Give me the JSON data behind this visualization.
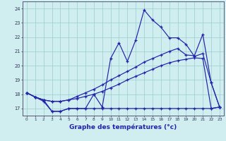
{
  "xlabel": "Graphe des températures (°c)",
  "hours": [
    0,
    1,
    2,
    3,
    4,
    5,
    6,
    7,
    8,
    9,
    10,
    11,
    12,
    13,
    14,
    15,
    16,
    17,
    18,
    19,
    20,
    21,
    22,
    23
  ],
  "line1": [
    18.1,
    17.8,
    17.5,
    16.8,
    16.8,
    17.0,
    17.0,
    17.0,
    17.0,
    17.0,
    17.0,
    17.0,
    17.0,
    17.0,
    17.0,
    17.0,
    17.0,
    17.0,
    17.0,
    17.0,
    17.0,
    17.0,
    17.0,
    17.1
  ],
  "line2": [
    18.1,
    17.8,
    17.6,
    17.5,
    17.5,
    17.6,
    17.7,
    17.85,
    18.0,
    18.2,
    18.45,
    18.7,
    19.0,
    19.25,
    19.5,
    19.75,
    20.0,
    20.2,
    20.35,
    20.45,
    20.55,
    20.5,
    17.0,
    17.1
  ],
  "line3": [
    18.1,
    17.8,
    17.6,
    17.5,
    17.5,
    17.6,
    17.85,
    18.1,
    18.35,
    18.65,
    19.0,
    19.3,
    19.6,
    19.9,
    20.25,
    20.5,
    20.75,
    21.0,
    21.2,
    20.75,
    20.7,
    22.2,
    18.8,
    17.1
  ],
  "line4": [
    18.1,
    17.8,
    17.6,
    16.8,
    16.8,
    17.0,
    17.0,
    17.0,
    18.0,
    17.1,
    20.5,
    21.6,
    20.3,
    21.8,
    23.9,
    23.2,
    22.7,
    21.95,
    21.95,
    21.5,
    20.65,
    20.85,
    18.8,
    17.1
  ],
  "line_color": "#2222aa",
  "bg_color": "#d0eef0",
  "grid_color": "#99cccc",
  "ylim": [
    16.5,
    24.5
  ],
  "yticks": [
    17,
    18,
    19,
    20,
    21,
    22,
    23,
    24
  ],
  "xlim": [
    -0.5,
    23.5
  ]
}
